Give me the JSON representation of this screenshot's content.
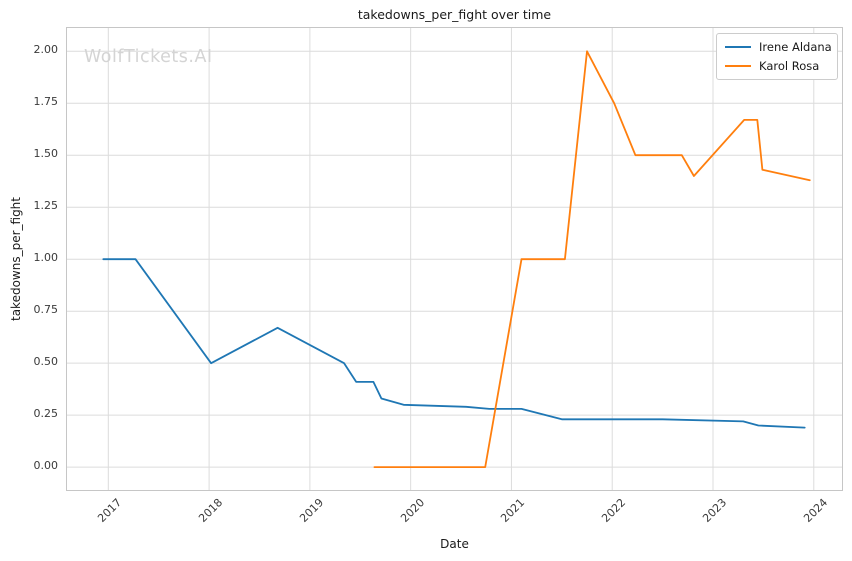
{
  "watermark": "WolfTickets.AI",
  "chart_data": {
    "type": "line",
    "title": "takedowns_per_fight over time",
    "xlabel": "Date",
    "ylabel": "takedowns_per_fight",
    "grid": true,
    "legend_position": "upper right",
    "xlim": [
      2016.59,
      2024.28
    ],
    "ylim": [
      -0.11,
      2.112
    ],
    "x_ticks": [
      {
        "v": 2017,
        "label": "2017"
      },
      {
        "v": 2018,
        "label": "2018"
      },
      {
        "v": 2019,
        "label": "2019"
      },
      {
        "v": 2020,
        "label": "2020"
      },
      {
        "v": 2021,
        "label": "2021"
      },
      {
        "v": 2022,
        "label": "2022"
      },
      {
        "v": 2023,
        "label": "2023"
      },
      {
        "v": 2024,
        "label": "2024"
      }
    ],
    "y_ticks": [
      {
        "v": 0.0,
        "label": "0.00"
      },
      {
        "v": 0.25,
        "label": "0.25"
      },
      {
        "v": 0.5,
        "label": "0.50"
      },
      {
        "v": 0.75,
        "label": "0.75"
      },
      {
        "v": 1.0,
        "label": "1.00"
      },
      {
        "v": 1.25,
        "label": "1.25"
      },
      {
        "v": 1.5,
        "label": "1.50"
      },
      {
        "v": 1.75,
        "label": "1.75"
      },
      {
        "v": 2.0,
        "label": "2.00"
      }
    ],
    "series": [
      {
        "name": "Irene Aldana",
        "color": "#1f77b4",
        "points": [
          [
            2016.95,
            1.0
          ],
          [
            2017.27,
            1.0
          ],
          [
            2018.02,
            0.5
          ],
          [
            2018.68,
            0.67
          ],
          [
            2019.34,
            0.5
          ],
          [
            2019.46,
            0.41
          ],
          [
            2019.63,
            0.41
          ],
          [
            2019.71,
            0.33
          ],
          [
            2019.93,
            0.3
          ],
          [
            2020.55,
            0.29
          ],
          [
            2020.78,
            0.28
          ],
          [
            2021.1,
            0.28
          ],
          [
            2021.5,
            0.23
          ],
          [
            2022.5,
            0.23
          ],
          [
            2023.3,
            0.22
          ],
          [
            2023.45,
            0.2
          ],
          [
            2023.91,
            0.19
          ]
        ]
      },
      {
        "name": "Karol Rosa",
        "color": "#ff7f0e",
        "points": [
          [
            2019.64,
            0.0
          ],
          [
            2020.74,
            0.0
          ],
          [
            2021.1,
            1.0
          ],
          [
            2021.53,
            1.0
          ],
          [
            2021.75,
            2.0
          ],
          [
            2022.02,
            1.75
          ],
          [
            2022.23,
            1.5
          ],
          [
            2022.69,
            1.5
          ],
          [
            2022.81,
            1.4
          ],
          [
            2023.31,
            1.67
          ],
          [
            2023.44,
            1.67
          ],
          [
            2023.49,
            1.43
          ],
          [
            2023.96,
            1.38
          ]
        ]
      }
    ],
    "style": {
      "grid_color": "#dcdcdc",
      "line_width": 1.8
    }
  }
}
